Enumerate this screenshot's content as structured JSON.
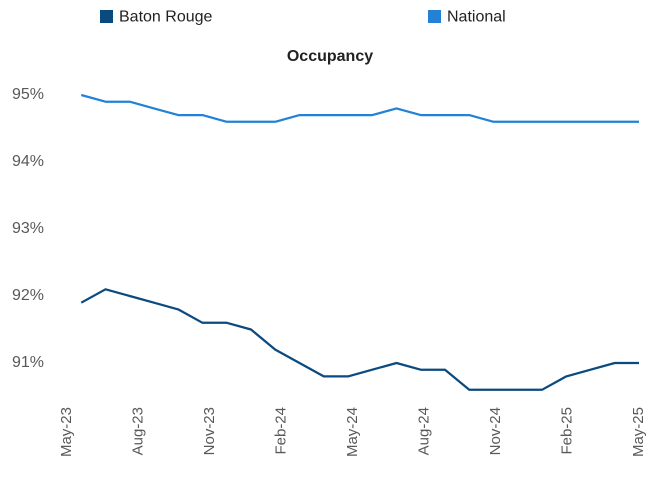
{
  "chart_data": {
    "type": "line",
    "title": "Occupancy",
    "categories": [
      "May-23",
      null,
      null,
      "Aug-23",
      null,
      null,
      "Nov-23",
      null,
      null,
      "Feb-24",
      null,
      null,
      "May-24",
      null,
      null,
      "Aug-24",
      null,
      null,
      "Nov-24",
      null,
      null,
      "Feb-25",
      null,
      null,
      "May-25"
    ],
    "series": [
      {
        "name": "Baton Rouge",
        "color": "#0b4a7f",
        "values": [
          null,
          91.9,
          92.1,
          92.0,
          91.9,
          91.8,
          91.6,
          91.6,
          91.5,
          91.2,
          91.0,
          90.8,
          90.8,
          90.9,
          91.0,
          90.9,
          90.9,
          90.6,
          90.6,
          90.6,
          90.6,
          90.8,
          90.9,
          91.0,
          91.0
        ]
      },
      {
        "name": "National",
        "color": "#2382d6",
        "values": [
          null,
          95.0,
          94.9,
          94.9,
          94.8,
          94.7,
          94.7,
          94.6,
          94.6,
          94.6,
          94.7,
          94.7,
          94.7,
          94.7,
          94.8,
          94.7,
          94.7,
          94.7,
          94.6,
          94.6,
          94.6,
          94.6,
          94.6,
          94.6,
          94.6
        ]
      }
    ],
    "ylim": [
      90.5,
      95.2
    ],
    "yticks": [
      {
        "value": 91,
        "label": "91%"
      },
      {
        "value": 92,
        "label": "92%"
      },
      {
        "value": 93,
        "label": "93%"
      },
      {
        "value": 94,
        "label": "94%"
      },
      {
        "value": 95,
        "label": "95%"
      }
    ],
    "grid": false,
    "legend": "top"
  }
}
